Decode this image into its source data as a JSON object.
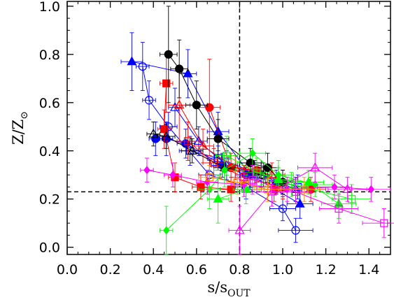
{
  "chart_data": {
    "type": "scatter",
    "xlabel": "s/s",
    "xlabel_sub": "OUT",
    "ylabel": "Z/Z",
    "ylabel_sym": "⊙",
    "xlim": [
      0.0,
      1.5
    ],
    "ylim": [
      -0.03,
      1.02
    ],
    "x_ticks": [
      "0.0",
      "0.2",
      "0.4",
      "0.6",
      "0.8",
      "1.0",
      "1.2",
      "1.4"
    ],
    "x_tick_values": [
      0.0,
      0.2,
      0.4,
      0.6,
      0.8,
      1.0,
      1.2,
      1.4
    ],
    "y_ticks": [
      "0.0",
      "0.2",
      "0.4",
      "0.6",
      "0.8",
      "1.0"
    ],
    "y_tick_values": [
      0.0,
      0.2,
      0.4,
      0.6,
      0.8,
      1.0
    ],
    "grid": false,
    "reference_lines": {
      "vertical_x": 0.8,
      "horizontal_y": 0.23
    },
    "series": [
      {
        "color": "#0000ff",
        "marker": "triangle-filled",
        "points": [
          [
            0.3,
            0.77,
            0.05,
            0.12
          ],
          [
            0.56,
            0.72,
            0.04,
            0.1
          ],
          [
            0.7,
            0.48,
            0.05,
            0.08
          ],
          [
            0.85,
            0.3,
            0.05,
            0.06
          ],
          [
            1.08,
            0.18,
            0.06,
            0.06
          ]
        ]
      },
      {
        "color": "#0000ff",
        "marker": "circle-open",
        "points": [
          [
            0.35,
            0.75,
            0.03,
            0.1
          ],
          [
            0.38,
            0.61,
            0.03,
            0.08
          ],
          [
            0.47,
            0.5,
            0.04,
            0.06
          ],
          [
            0.66,
            0.3,
            0.05,
            0.06
          ],
          [
            0.83,
            0.25,
            0.05,
            0.05
          ],
          [
            1.0,
            0.16,
            0.06,
            0.05
          ],
          [
            1.06,
            0.07,
            0.08,
            0.05
          ]
        ]
      },
      {
        "color": "#0000ff",
        "marker": "circle-filled",
        "points": [
          [
            0.41,
            0.45,
            0.03,
            0.07
          ],
          [
            0.46,
            0.45,
            0.03,
            0.07
          ],
          [
            0.55,
            0.43,
            0.04,
            0.06
          ],
          [
            0.72,
            0.34,
            0.05,
            0.05
          ],
          [
            0.83,
            0.3,
            0.05,
            0.05
          ],
          [
            0.97,
            0.27,
            0.05,
            0.05
          ]
        ]
      },
      {
        "color": "#0000ff",
        "marker": "triangle-open",
        "points": [
          [
            0.5,
            0.58,
            0.03,
            0.08
          ],
          [
            0.61,
            0.44,
            0.04,
            0.06
          ],
          [
            0.74,
            0.34,
            0.05,
            0.06
          ],
          [
            0.9,
            0.3,
            0.05,
            0.05
          ],
          [
            1.06,
            0.24,
            0.06,
            0.05
          ]
        ]
      },
      {
        "color": "#0000ff",
        "marker": "square-open",
        "points": [
          [
            0.57,
            0.4,
            0.05,
            0.06
          ],
          [
            0.7,
            0.37,
            0.05,
            0.05
          ],
          [
            0.87,
            0.31,
            0.05,
            0.05
          ],
          [
            1.07,
            0.25,
            0.06,
            0.05
          ]
        ]
      },
      {
        "color": "#ff0000",
        "marker": "square-filled",
        "points": [
          [
            0.46,
            0.68,
            0.03,
            0.12
          ],
          [
            0.45,
            0.49,
            0.03,
            0.08
          ],
          [
            0.5,
            0.29,
            0.03,
            0.06
          ],
          [
            0.62,
            0.25,
            0.04,
            0.05
          ],
          [
            0.76,
            0.24,
            0.05,
            0.05
          ],
          [
            0.96,
            0.24,
            0.06,
            0.05
          ]
        ]
      },
      {
        "color": "#ff0000",
        "marker": "circle-filled",
        "points": [
          [
            0.66,
            0.58,
            0.05,
            0.2
          ],
          [
            0.76,
            0.33,
            0.06,
            0.06
          ],
          [
            0.88,
            0.32,
            0.06,
            0.05
          ],
          [
            1.0,
            0.27,
            0.06,
            0.05
          ],
          [
            1.13,
            0.24,
            0.07,
            0.05
          ]
        ]
      },
      {
        "color": "#ff0000",
        "marker": "triangle-open",
        "points": [
          [
            0.52,
            0.59,
            0.05,
            0.15
          ],
          [
            0.63,
            0.42,
            0.05,
            0.07
          ],
          [
            0.78,
            0.33,
            0.06,
            0.05
          ],
          [
            0.95,
            0.3,
            0.06,
            0.05
          ]
        ]
      },
      {
        "color": "#ff0000",
        "marker": "square-open",
        "points": [
          [
            0.56,
            0.44,
            0.05,
            0.08
          ],
          [
            0.68,
            0.35,
            0.05,
            0.06
          ],
          [
            0.82,
            0.29,
            0.06,
            0.05
          ],
          [
            1.0,
            0.25,
            0.07,
            0.05
          ]
        ]
      },
      {
        "color": "#000000",
        "marker": "circle-filled",
        "points": [
          [
            0.47,
            0.8,
            0.04,
            0.2
          ],
          [
            0.52,
            0.74,
            0.04,
            0.12
          ],
          [
            0.6,
            0.59,
            0.05,
            0.1
          ],
          [
            0.7,
            0.45,
            0.05,
            0.08
          ],
          [
            0.85,
            0.35,
            0.05,
            0.06
          ],
          [
            0.93,
            0.33,
            0.05,
            0.06
          ],
          [
            1.0,
            0.27,
            0.06,
            0.05
          ]
        ]
      },
      {
        "color": "#000000",
        "marker": "triangle-open",
        "points": [
          [
            0.4,
            0.47,
            0.03,
            0.05
          ],
          [
            0.46,
            0.46,
            0.04,
            0.05
          ],
          [
            0.58,
            0.4,
            0.05,
            0.05
          ],
          [
            0.73,
            0.33,
            0.05,
            0.05
          ],
          [
            0.91,
            0.3,
            0.06,
            0.05
          ]
        ]
      },
      {
        "color": "#00ff00",
        "marker": "triangle-filled",
        "points": [
          [
            0.7,
            0.2,
            0.05,
            0.1
          ],
          [
            0.83,
            0.24,
            0.06,
            0.06
          ],
          [
            0.98,
            0.28,
            0.07,
            0.05
          ],
          [
            1.12,
            0.27,
            0.07,
            0.05
          ],
          [
            1.26,
            0.18,
            0.08,
            0.06
          ]
        ]
      },
      {
        "color": "#00ff00",
        "marker": "diamond-filled",
        "points": [
          [
            0.46,
            0.07,
            0.03,
            0.1
          ],
          [
            0.66,
            0.24,
            0.05,
            0.08
          ],
          [
            0.73,
            0.32,
            0.05,
            0.07
          ],
          [
            0.86,
            0.39,
            0.06,
            0.06
          ],
          [
            0.98,
            0.3,
            0.07,
            0.06
          ],
          [
            1.15,
            0.26,
            0.08,
            0.05
          ]
        ]
      },
      {
        "color": "#00ff00",
        "marker": "square-open",
        "points": [
          [
            0.74,
            0.38,
            0.05,
            0.08
          ],
          [
            0.88,
            0.31,
            0.06,
            0.06
          ],
          [
            1.04,
            0.26,
            0.07,
            0.05
          ],
          [
            1.32,
            0.2,
            0.09,
            0.06
          ]
        ]
      },
      {
        "color": "#ff00ff",
        "marker": "diamond-filled",
        "points": [
          [
            0.37,
            0.32,
            0.03,
            0.05
          ],
          [
            0.49,
            0.3,
            0.04,
            0.05
          ],
          [
            0.65,
            0.27,
            0.05,
            0.05
          ],
          [
            0.82,
            0.26,
            0.06,
            0.05
          ],
          [
            1.02,
            0.24,
            0.07,
            0.05
          ],
          [
            1.24,
            0.25,
            0.08,
            0.05
          ],
          [
            1.41,
            0.24,
            0.09,
            0.05
          ]
        ]
      },
      {
        "color": "#ff00ff",
        "marker": "triangle-open",
        "points": [
          [
            0.8,
            0.07,
            0.05,
            0.1
          ],
          [
            0.95,
            0.23,
            0.07,
            0.06
          ],
          [
            1.15,
            0.33,
            0.08,
            0.06
          ],
          [
            1.3,
            0.24,
            0.09,
            0.05
          ]
        ]
      },
      {
        "color": "#ff00ff",
        "marker": "square-open",
        "points": [
          [
            0.86,
            0.28,
            0.06,
            0.06
          ],
          [
            1.06,
            0.23,
            0.07,
            0.05
          ],
          [
            1.26,
            0.16,
            0.09,
            0.06
          ],
          [
            1.47,
            0.1,
            0.1,
            0.06
          ]
        ]
      },
      {
        "color": "#ff8c00",
        "marker": "square-open",
        "points": [
          [
            0.66,
            0.29,
            0.05,
            0.05
          ],
          [
            0.79,
            0.27,
            0.05,
            0.05
          ],
          [
            0.93,
            0.24,
            0.06,
            0.05
          ],
          [
            1.1,
            0.24,
            0.07,
            0.05
          ]
        ]
      }
    ]
  }
}
